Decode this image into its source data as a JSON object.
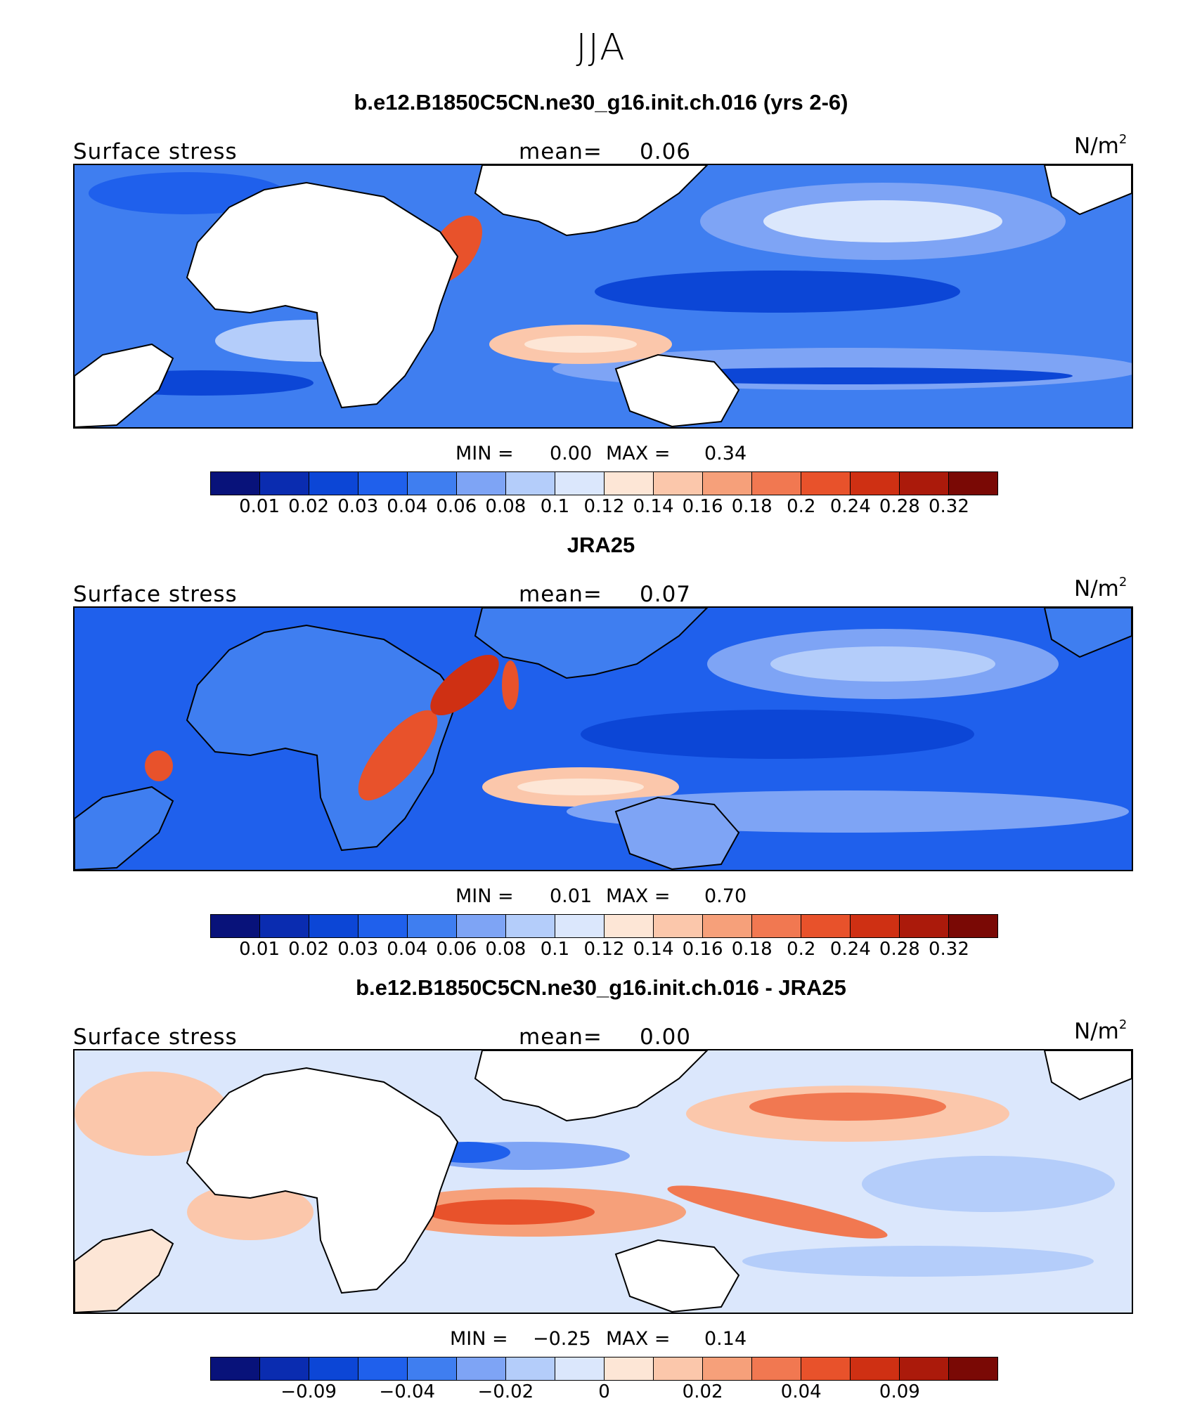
{
  "season": "JJA",
  "colors": [
    "#08127a",
    "#0a2cb0",
    "#0c46d6",
    "#1f60ec",
    "#3f7ef0",
    "#7ea4f5",
    "#b4cdfa",
    "#dbe7fc",
    "#fde6d6",
    "#fbc7ab",
    "#f6a07a",
    "#f17851",
    "#e8522b",
    "#cf3013",
    "#ab1a0b",
    "#7a0905"
  ],
  "panels": [
    {
      "title": "b.e12.B1850C5CN.ne30_g16.init.ch.016 (yrs 2-6)",
      "variable": "Surface stress",
      "mean_label": "mean=",
      "mean": "0.06",
      "units": "N/m",
      "units_exp": "2",
      "min_label": "MIN =",
      "min": "0.00",
      "max_label": "MAX =",
      "max": "0.34",
      "tick_labels": [
        "0.01",
        "0.02",
        "0.03",
        "0.04",
        "0.06",
        "0.08",
        "0.1",
        "0.12",
        "0.14",
        "0.16",
        "0.18",
        "0.2",
        "0.24",
        "0.28",
        "0.32"
      ],
      "ocean_fill": "#3f7ef0"
    },
    {
      "title": "JRA25",
      "variable": "Surface stress",
      "mean_label": "mean=",
      "mean": "0.07",
      "units": "N/m",
      "units_exp": "2",
      "min_label": "MIN =",
      "min": "0.01",
      "max_label": "MAX =",
      "max": "0.70",
      "tick_labels": [
        "0.01",
        "0.02",
        "0.03",
        "0.04",
        "0.06",
        "0.08",
        "0.1",
        "0.12",
        "0.14",
        "0.16",
        "0.18",
        "0.2",
        "0.24",
        "0.28",
        "0.32"
      ],
      "ocean_fill": "#3f7ef0"
    },
    {
      "title": "b.e12.B1850C5CN.ne30_g16.init.ch.016 - JRA25",
      "variable": "Surface stress",
      "mean_label": "mean=",
      "mean": "0.00",
      "units": "N/m",
      "units_exp": "2",
      "min_label": "MIN =",
      "min": "−0.25",
      "max_label": "MAX =",
      "max": "0.14",
      "tick_labels": [
        "−0.09",
        "−0.04",
        "−0.02",
        "0",
        "0.02",
        "0.04",
        "0.09"
      ],
      "ocean_fill": "#dbe7fc"
    }
  ]
}
